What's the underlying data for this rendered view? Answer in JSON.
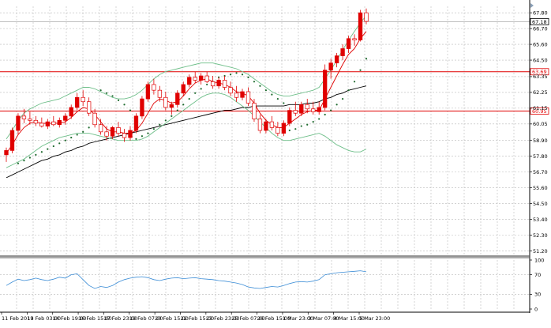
{
  "chart_data": {
    "type": "candlestick",
    "price_axis": {
      "ylim": [
        50.95,
        68.25
      ],
      "tick_labels": [
        "67.80",
        "66.70",
        "65.60",
        "64.50",
        "63.35",
        "62.25",
        "61.15",
        "60.05",
        "58.90",
        "57.80",
        "56.70",
        "55.60",
        "54.50",
        "53.40",
        "52.30",
        "51.20"
      ]
    },
    "indicator_axis": {
      "ylim": [
        0,
        100
      ],
      "tick_labels": [
        "100",
        "70",
        "30",
        "0"
      ]
    },
    "x_tick_labels": [
      "11 Feb 2019",
      "13 Feb 03:00",
      "14 Feb 19:00",
      "16 Feb 15:00",
      "17 Feb 23:00",
      "19 Feb 07:00",
      "20 Feb 15:00",
      "22 Feb 15:00",
      "23 Feb 23:00",
      "25 Feb 07:00",
      "26 Feb 15:00",
      "1 Mar 23:00",
      "3 Mar 07:00",
      "4 Mar 15:00",
      "5 Mar 23:00"
    ],
    "horizontal_levels": [
      {
        "value": 63.69,
        "label": "63.69",
        "color": "#e00000"
      },
      {
        "value": 60.95,
        "label": "60.95",
        "color": "#e00000"
      }
    ],
    "current_price": {
      "value": 67.18,
      "label": "67.18"
    },
    "candles": [
      {
        "o": 57.9,
        "h": 58.4,
        "l": 57.4,
        "c": 58.2
      },
      {
        "o": 58.2,
        "h": 59.8,
        "l": 58.0,
        "c": 59.6
      },
      {
        "o": 59.6,
        "h": 60.8,
        "l": 59.3,
        "c": 60.6
      },
      {
        "o": 60.6,
        "h": 61.1,
        "l": 60.1,
        "c": 60.4
      },
      {
        "o": 60.4,
        "h": 60.9,
        "l": 60.0,
        "c": 60.3
      },
      {
        "o": 60.3,
        "h": 60.6,
        "l": 59.9,
        "c": 60.1
      },
      {
        "o": 60.1,
        "h": 60.5,
        "l": 59.8,
        "c": 59.9
      },
      {
        "o": 59.9,
        "h": 60.4,
        "l": 59.7,
        "c": 60.2
      },
      {
        "o": 60.2,
        "h": 60.6,
        "l": 59.9,
        "c": 60.0
      },
      {
        "o": 60.0,
        "h": 60.5,
        "l": 59.8,
        "c": 60.3
      },
      {
        "o": 60.3,
        "h": 60.8,
        "l": 60.0,
        "c": 60.6
      },
      {
        "o": 60.6,
        "h": 61.4,
        "l": 60.4,
        "c": 61.2
      },
      {
        "o": 61.2,
        "h": 62.2,
        "l": 61.0,
        "c": 61.9
      },
      {
        "o": 61.9,
        "h": 62.4,
        "l": 61.3,
        "c": 61.6
      },
      {
        "o": 61.6,
        "h": 61.9,
        "l": 60.6,
        "c": 60.8
      },
      {
        "o": 60.8,
        "h": 61.1,
        "l": 59.8,
        "c": 60.0
      },
      {
        "o": 60.0,
        "h": 60.4,
        "l": 59.3,
        "c": 59.5
      },
      {
        "o": 59.5,
        "h": 59.9,
        "l": 58.9,
        "c": 59.2
      },
      {
        "o": 59.2,
        "h": 59.9,
        "l": 59.0,
        "c": 59.8
      },
      {
        "o": 59.8,
        "h": 60.2,
        "l": 59.2,
        "c": 59.4
      },
      {
        "o": 59.4,
        "h": 59.7,
        "l": 58.8,
        "c": 59.1
      },
      {
        "o": 59.1,
        "h": 59.9,
        "l": 58.9,
        "c": 59.6
      },
      {
        "o": 59.6,
        "h": 60.8,
        "l": 59.4,
        "c": 60.6
      },
      {
        "o": 60.6,
        "h": 62.0,
        "l": 60.4,
        "c": 61.8
      },
      {
        "o": 61.8,
        "h": 63.0,
        "l": 61.6,
        "c": 62.8
      },
      {
        "o": 62.8,
        "h": 63.2,
        "l": 62.1,
        "c": 62.4
      },
      {
        "o": 62.4,
        "h": 62.7,
        "l": 61.6,
        "c": 61.9
      },
      {
        "o": 61.9,
        "h": 62.3,
        "l": 61.0,
        "c": 61.2
      },
      {
        "o": 61.2,
        "h": 61.6,
        "l": 60.7,
        "c": 61.4
      },
      {
        "o": 61.4,
        "h": 62.4,
        "l": 61.2,
        "c": 62.2
      },
      {
        "o": 62.2,
        "h": 63.0,
        "l": 62.0,
        "c": 62.8
      },
      {
        "o": 62.8,
        "h": 63.5,
        "l": 62.6,
        "c": 63.3
      },
      {
        "o": 63.3,
        "h": 63.7,
        "l": 62.9,
        "c": 63.1
      },
      {
        "o": 63.1,
        "h": 63.6,
        "l": 62.8,
        "c": 63.4
      },
      {
        "o": 63.4,
        "h": 63.7,
        "l": 62.9,
        "c": 63.0
      },
      {
        "o": 63.0,
        "h": 63.4,
        "l": 62.5,
        "c": 62.7
      },
      {
        "o": 62.7,
        "h": 63.3,
        "l": 62.5,
        "c": 63.1
      },
      {
        "o": 63.1,
        "h": 63.4,
        "l": 62.4,
        "c": 62.6
      },
      {
        "o": 62.6,
        "h": 63.0,
        "l": 62.0,
        "c": 62.2
      },
      {
        "o": 62.2,
        "h": 62.7,
        "l": 61.6,
        "c": 61.9
      },
      {
        "o": 61.9,
        "h": 62.5,
        "l": 61.7,
        "c": 62.3
      },
      {
        "o": 62.3,
        "h": 62.6,
        "l": 61.3,
        "c": 61.5
      },
      {
        "o": 61.5,
        "h": 61.8,
        "l": 60.2,
        "c": 60.4
      },
      {
        "o": 60.4,
        "h": 60.7,
        "l": 59.4,
        "c": 59.6
      },
      {
        "o": 59.6,
        "h": 60.4,
        "l": 59.4,
        "c": 60.2
      },
      {
        "o": 60.2,
        "h": 60.6,
        "l": 59.6,
        "c": 59.8
      },
      {
        "o": 59.8,
        "h": 60.2,
        "l": 59.2,
        "c": 59.4
      },
      {
        "o": 59.4,
        "h": 60.3,
        "l": 59.2,
        "c": 60.1
      },
      {
        "o": 60.1,
        "h": 61.2,
        "l": 59.9,
        "c": 61.0
      },
      {
        "o": 61.0,
        "h": 61.6,
        "l": 60.6,
        "c": 60.8
      },
      {
        "o": 60.8,
        "h": 61.6,
        "l": 60.6,
        "c": 61.4
      },
      {
        "o": 61.4,
        "h": 61.8,
        "l": 60.8,
        "c": 61.1
      },
      {
        "o": 61.1,
        "h": 61.6,
        "l": 60.7,
        "c": 60.9
      },
      {
        "o": 60.9,
        "h": 61.6,
        "l": 60.7,
        "c": 61.2
      },
      {
        "o": 61.2,
        "h": 64.2,
        "l": 61.0,
        "c": 63.8
      },
      {
        "o": 63.8,
        "h": 64.6,
        "l": 63.2,
        "c": 64.3
      },
      {
        "o": 64.3,
        "h": 65.0,
        "l": 64.0,
        "c": 64.8
      },
      {
        "o": 64.8,
        "h": 65.6,
        "l": 64.5,
        "c": 65.3
      },
      {
        "o": 65.3,
        "h": 66.2,
        "l": 65.0,
        "c": 66.0
      },
      {
        "o": 66.0,
        "h": 66.3,
        "l": 65.5,
        "c": 65.9
      },
      {
        "o": 65.9,
        "h": 68.0,
        "l": 65.8,
        "c": 67.8
      },
      {
        "o": 67.8,
        "h": 68.1,
        "l": 67.0,
        "c": 67.2
      }
    ],
    "series": [
      {
        "color": "#000000",
        "values": [
          56.3,
          56.5,
          56.7,
          56.9,
          57.1,
          57.3,
          57.5,
          57.6,
          57.8,
          57.9,
          58.1,
          58.2,
          58.4,
          58.5,
          58.7,
          58.8,
          58.9,
          59.0,
          59.1,
          59.2,
          59.3,
          59.4,
          59.5,
          59.6,
          59.7,
          59.8,
          59.9,
          60.0,
          60.1,
          60.2,
          60.3,
          60.4,
          60.5,
          60.6,
          60.7,
          60.8,
          60.9,
          61.0,
          61.0,
          61.1,
          61.2,
          61.2,
          61.3,
          61.3,
          61.3,
          61.3,
          61.3,
          61.3,
          61.4,
          61.4,
          61.4,
          61.5,
          61.5,
          61.6,
          61.8,
          61.9,
          62.1,
          62.2,
          62.4,
          62.5,
          62.6,
          62.7
        ]
      },
      {
        "color": "#e00000",
        "values": [
          58.0,
          58.6,
          59.3,
          59.8,
          60.1,
          60.2,
          60.1,
          60.1,
          60.1,
          60.1,
          60.2,
          60.5,
          60.9,
          61.2,
          61.1,
          60.7,
          60.2,
          59.7,
          59.5,
          59.5,
          59.4,
          59.4,
          59.6,
          60.1,
          60.8,
          61.5,
          61.8,
          61.7,
          61.5,
          61.6,
          62.0,
          62.5,
          62.9,
          63.1,
          63.2,
          63.0,
          62.9,
          62.8,
          62.6,
          62.3,
          62.2,
          62.0,
          61.5,
          60.8,
          60.3,
          60.0,
          59.8,
          59.8,
          60.1,
          60.4,
          60.7,
          60.9,
          61.0,
          61.0,
          61.8,
          62.6,
          63.4,
          64.2,
          64.9,
          65.3,
          66.0,
          66.5
        ]
      },
      {
        "color": "#6fbf8a",
        "values": [
          59.0,
          59.6,
          60.3,
          60.8,
          61.1,
          61.3,
          61.5,
          61.6,
          61.7,
          61.8,
          62.0,
          62.2,
          62.4,
          62.6,
          62.6,
          62.5,
          62.3,
          62.1,
          61.9,
          61.8,
          61.8,
          61.9,
          62.1,
          62.4,
          62.8,
          63.2,
          63.5,
          63.7,
          63.8,
          63.9,
          64.0,
          64.1,
          64.2,
          64.3,
          64.3,
          64.3,
          64.2,
          64.1,
          64.0,
          63.9,
          63.7,
          63.5,
          63.2,
          62.9,
          62.6,
          62.3,
          62.1,
          62.0,
          62.0,
          62.1,
          62.2,
          62.3,
          62.4,
          62.6,
          63.2,
          63.8,
          64.5,
          65.2,
          65.9,
          66.5,
          67.1,
          67.6
        ]
      },
      {
        "color": "#6fbf8a",
        "values": [
          57.0,
          57.2,
          57.4,
          57.6,
          57.9,
          58.2,
          58.5,
          58.7,
          58.9,
          59.1,
          59.2,
          59.3,
          59.4,
          59.4,
          59.4,
          59.3,
          59.2,
          59.1,
          59.0,
          58.9,
          58.9,
          58.9,
          58.9,
          59.0,
          59.2,
          59.5,
          59.8,
          60.1,
          60.4,
          60.7,
          61.0,
          61.3,
          61.6,
          61.9,
          62.1,
          62.2,
          62.2,
          62.1,
          61.9,
          61.6,
          61.3,
          61.0,
          60.6,
          60.2,
          59.8,
          59.4,
          59.1,
          58.9,
          58.9,
          59.0,
          59.1,
          59.2,
          59.3,
          59.4,
          59.2,
          58.9,
          58.6,
          58.4,
          58.2,
          58.1,
          58.1,
          58.3
        ]
      },
      {
        "color": "#1e6a2e",
        "values": [
          null,
          null,
          57.3,
          57.5,
          57.7,
          57.9,
          58.1,
          58.3,
          58.5,
          58.7,
          58.9,
          59.1,
          59.3,
          59.5,
          59.8,
          60.3,
          62.4,
          62.2,
          62.0,
          61.7,
          61.4,
          61.0,
          59.0,
          59.2,
          59.4,
          59.7,
          60.0,
          60.3,
          60.6,
          61.0,
          61.4,
          61.8,
          62.2,
          62.5,
          62.8,
          63.0,
          63.3,
          63.4,
          63.5,
          63.6,
          63.5,
          63.3,
          63.0,
          62.7,
          62.4,
          62.1,
          61.8,
          61.5,
          59.6,
          59.7,
          59.9,
          60.0,
          60.2,
          60.4,
          60.7,
          61.0,
          61.4,
          61.8,
          62.4,
          63.0,
          63.8,
          64.6
        ]
      },
      {
        "color": "#3c8dd6",
        "values": [
          48,
          55,
          61,
          58,
          60,
          63,
          60,
          58,
          61,
          65,
          63,
          70,
          72,
          60,
          48,
          42,
          46,
          44,
          48,
          55,
          60,
          63,
          65,
          66,
          64,
          60,
          58,
          61,
          63,
          64,
          62,
          63,
          64,
          62,
          61,
          60,
          58,
          57,
          55,
          53,
          50,
          45,
          43,
          42,
          44,
          46,
          45,
          48,
          52,
          55,
          56,
          55,
          57,
          60,
          70,
          72,
          74,
          75,
          76,
          77,
          78,
          76
        ]
      }
    ]
  }
}
